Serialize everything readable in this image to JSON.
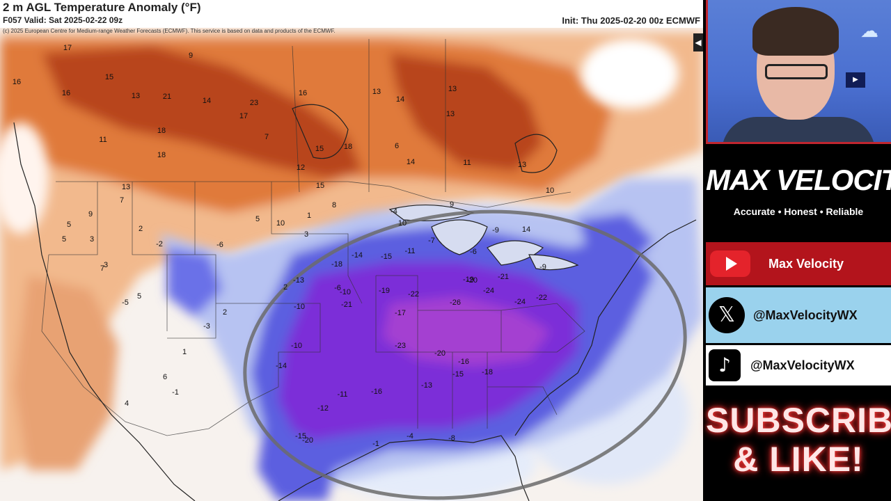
{
  "map": {
    "title": "2 m AGL Temperature Anomaly (°F)",
    "valid": "F057 Valid: Sat 2025-02-22 09z",
    "init": "Init: Thu 2025-02-20 00z ECMWF",
    "credit": "(c) 2025 European Centre for Medium-range Weather Forecasts (ECMWF). This service is based on data and products of the ECMWF.",
    "colors": {
      "warm_strong": "#c0481a",
      "warm_mid": "#e07a3a",
      "warm_light": "#f2b98d",
      "cold_light": "#b7c3f2",
      "cold_mid": "#5b5fe0",
      "cold_strong": "#7b2fd8",
      "cold_extreme": "#a43fd1"
    },
    "labels": [
      "17",
      "9",
      "16",
      "15",
      "16",
      "13",
      "21",
      "14",
      "18",
      "11",
      "13",
      "23",
      "17",
      "7",
      "16",
      "14",
      "13",
      "18",
      "14",
      "9",
      "10",
      "15",
      "15",
      "18",
      "6",
      "13",
      "11",
      "12",
      "10",
      "13",
      "14",
      "5",
      "13",
      "9",
      "5",
      "7",
      "3",
      "7",
      "3",
      "2",
      "-2",
      "-6",
      "5",
      "1",
      "8",
      "3",
      "10",
      "-4",
      "-11",
      "-9",
      "-18",
      "-6",
      "-14",
      "-15",
      "-13",
      "-10",
      "-21",
      "-19",
      "-22",
      "-19",
      "-20",
      "-21",
      "-24",
      "-26",
      "-17",
      "-22",
      "-24",
      "-23",
      "-20",
      "-16",
      "-18",
      "-15",
      "-13",
      "-11",
      "-16",
      "-20",
      "-15",
      "-4",
      "-8",
      "-1",
      "-12",
      "2",
      "5",
      "-1",
      "6",
      "4",
      "-5",
      "-10",
      "1",
      "-3",
      "2",
      "-14",
      "-10",
      "-6",
      "-9",
      "-7"
    ]
  },
  "brand": {
    "name": "MAX VELOCITY",
    "tagline": "Accurate • Honest • Reliable"
  },
  "social": {
    "youtube": "Max Velocity",
    "x": "@MaxVelocityWX",
    "tiktok": "@MaxVelocityWX"
  },
  "cta": {
    "line1": "SUBSCRIBE",
    "line2": "& LIKE!"
  },
  "icons": {
    "x_glyph": "𝕏",
    "tiktok_glyph": "♪",
    "cloud_glyph": "☁",
    "corner_glyph": "◀"
  }
}
